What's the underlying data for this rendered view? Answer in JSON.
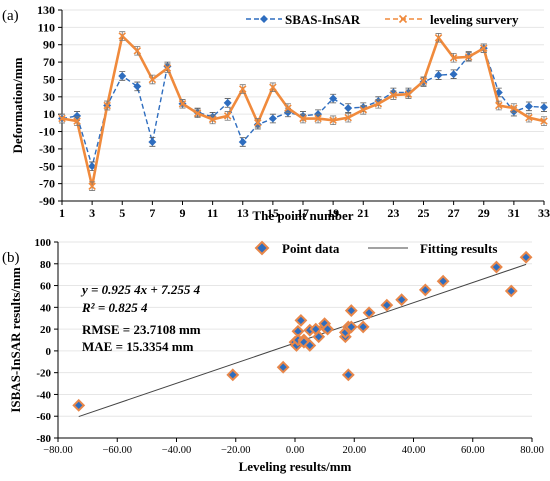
{
  "chart_data": [
    {
      "panel_label": "(a)",
      "type": "line",
      "xlabel": "The point number",
      "ylabel": "Deformation/mm",
      "xlim": [
        1,
        33
      ],
      "ylim": [
        -90,
        130
      ],
      "x_ticks": [
        1,
        3,
        5,
        7,
        9,
        11,
        13,
        15,
        17,
        19,
        21,
        23,
        25,
        27,
        29,
        31,
        33
      ],
      "y_ticks": [
        -90,
        -70,
        -50,
        -30,
        -10,
        10,
        30,
        50,
        70,
        90,
        110,
        130
      ],
      "legend_position": "top-right",
      "error_bar": 5,
      "x": [
        1,
        2,
        3,
        4,
        5,
        6,
        7,
        8,
        9,
        10,
        11,
        12,
        13,
        14,
        15,
        16,
        17,
        18,
        19,
        20,
        21,
        22,
        23,
        24,
        25,
        26,
        27,
        28,
        29,
        30,
        31,
        32,
        33
      ],
      "series": [
        {
          "name": "SBAS-InSAR",
          "color": "#2e6dbf",
          "marker": "diamond",
          "dash": "dashed",
          "values": [
            5,
            8,
            -50,
            20,
            54,
            42,
            -22,
            65,
            22,
            12,
            7,
            23,
            -22,
            -2,
            5,
            12,
            8,
            10,
            28,
            17,
            18,
            25,
            35,
            35,
            47,
            55,
            56,
            77,
            86,
            35,
            13,
            19,
            18
          ]
        },
        {
          "name": "leveling survery",
          "color": "#f08a3c",
          "marker": "x",
          "dash": "solid",
          "values": [
            5,
            2,
            -73,
            20,
            100,
            83,
            50,
            63,
            22,
            11,
            4,
            8,
            39,
            0,
            41,
            17,
            5,
            5,
            3,
            6,
            15,
            22,
            32,
            33,
            48,
            98,
            75,
            76,
            86,
            20,
            17,
            6,
            2
          ]
        }
      ]
    },
    {
      "panel_label": "(b)",
      "type": "scatter",
      "xlabel": "Leveling results/mm",
      "ylabel": "ISBAS-InSAR results/mm",
      "xlim": [
        -80,
        80
      ],
      "ylim": [
        -80,
        100
      ],
      "x_ticks": [
        -80,
        -60,
        -40,
        -20,
        0,
        20,
        40,
        60,
        80
      ],
      "x_tick_labels": [
        "−80.00",
        "−60.00",
        "−40.00",
        "−20.00",
        "0.00",
        "20.00",
        "40.00",
        "60.00",
        "80.00"
      ],
      "y_ticks": [
        -80,
        -60,
        -40,
        -20,
        0,
        20,
        40,
        60,
        80,
        100
      ],
      "legend_position": "top",
      "point_series": {
        "name": "Point data",
        "color": "#2e6dbf",
        "edge_color": "#e8874a",
        "x": [
          -73,
          -21,
          -4,
          0,
          0.5,
          1,
          1,
          2,
          3,
          3,
          5,
          5,
          7,
          8,
          10,
          10,
          11,
          17,
          17,
          18,
          18,
          19,
          19,
          23,
          25,
          31,
          36,
          44,
          50,
          68,
          73,
          78
        ],
        "y": [
          -50,
          -22,
          -15,
          8,
          5,
          18,
          10,
          28,
          10,
          8,
          5,
          19,
          20,
          13,
          22,
          25,
          20,
          13,
          17,
          -22,
          22,
          37,
          22,
          22,
          35,
          42,
          47,
          56,
          64,
          77,
          55,
          86
        ]
      },
      "fit_line": {
        "name": "Fitting results",
        "slope": 0.9254,
        "intercept": 7.2554,
        "x_range": [
          -73,
          78
        ]
      },
      "annotations": {
        "equation": "y = 0.925 4x + 7.255 4",
        "r2": "R² = 0.825 4",
        "rmse": "RMSE = 23.7108 mm",
        "mae": "MAE = 15.3354 mm"
      }
    }
  ]
}
